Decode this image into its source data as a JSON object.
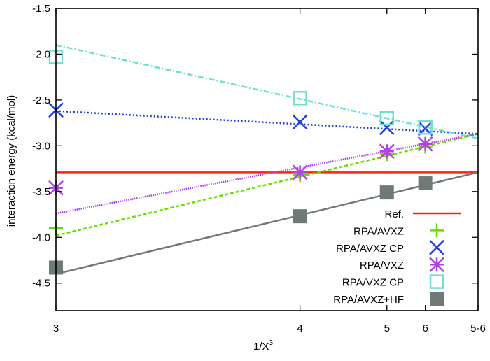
{
  "chart_data": {
    "type": "line",
    "xlabel": "1/X",
    "xlabel_sup": "3",
    "ylabel": "interaction energy (kcal/mol)",
    "x_scale": "reciprocal cube (1/X^3)",
    "x_ticks": [
      {
        "label": "3",
        "x": 3
      },
      {
        "label": "4",
        "x": 4
      },
      {
        "label": "5",
        "x": 5
      },
      {
        "label": "6",
        "x": 6
      },
      {
        "label": "5-6",
        "x": "inf"
      }
    ],
    "ylim": [
      -4.8,
      -1.5
    ],
    "y_ticks": [
      "-1.5",
      "-2.0",
      "-2.5",
      "-3.0",
      "-3.5",
      "-4.0",
      "-4.5"
    ],
    "grid": false,
    "legend_placement": "bottom-right",
    "reference": {
      "name": "Ref.",
      "value": -3.29,
      "color": "#ff2010"
    },
    "series": [
      {
        "name": "RPA/AVXZ",
        "marker": "plus",
        "color": "#66e000",
        "line_style": "dashed",
        "x": [
          3,
          4,
          5,
          6
        ],
        "y": [
          -3.9,
          -3.32,
          -3.09,
          -3.01
        ],
        "fit": {
          "at_x3": -3.98,
          "at_limit": -2.87
        }
      },
      {
        "name": "RPA/AVXZ CP",
        "marker": "cross",
        "color": "#2040e0",
        "line_style": "dotted",
        "x": [
          3,
          4,
          5,
          6
        ],
        "y": [
          -2.61,
          -2.74,
          -2.8,
          -2.81
        ],
        "fit": {
          "at_x3": -2.62,
          "at_limit": -2.87
        }
      },
      {
        "name": "RPA/VXZ",
        "marker": "star",
        "color": "#b040e8",
        "line_style": "fine-dotted",
        "x": [
          3,
          4,
          5,
          6
        ],
        "y": [
          -3.46,
          -3.29,
          -3.06,
          -2.98
        ],
        "fit": {
          "at_x3": -3.74,
          "at_limit": -2.87
        }
      },
      {
        "name": "RPA/VXZ CP",
        "marker": "open-square",
        "color": "#70e0d0",
        "line_style": "dash-dot",
        "x": [
          3,
          4,
          5,
          6
        ],
        "y": [
          -2.03,
          -2.48,
          -2.7,
          -2.8
        ],
        "fit": {
          "at_x3": -1.9,
          "at_limit": -2.92
        }
      },
      {
        "name": "RPA/AVXZ+HF",
        "marker": "filled-square",
        "color": "#6f7a78",
        "line_style": "solid",
        "x": [
          3,
          4,
          5,
          6
        ],
        "y": [
          -4.33,
          -3.77,
          -3.51,
          -3.41
        ],
        "fit": {
          "at_x3": -4.4,
          "at_limit": -3.29
        }
      }
    ]
  }
}
